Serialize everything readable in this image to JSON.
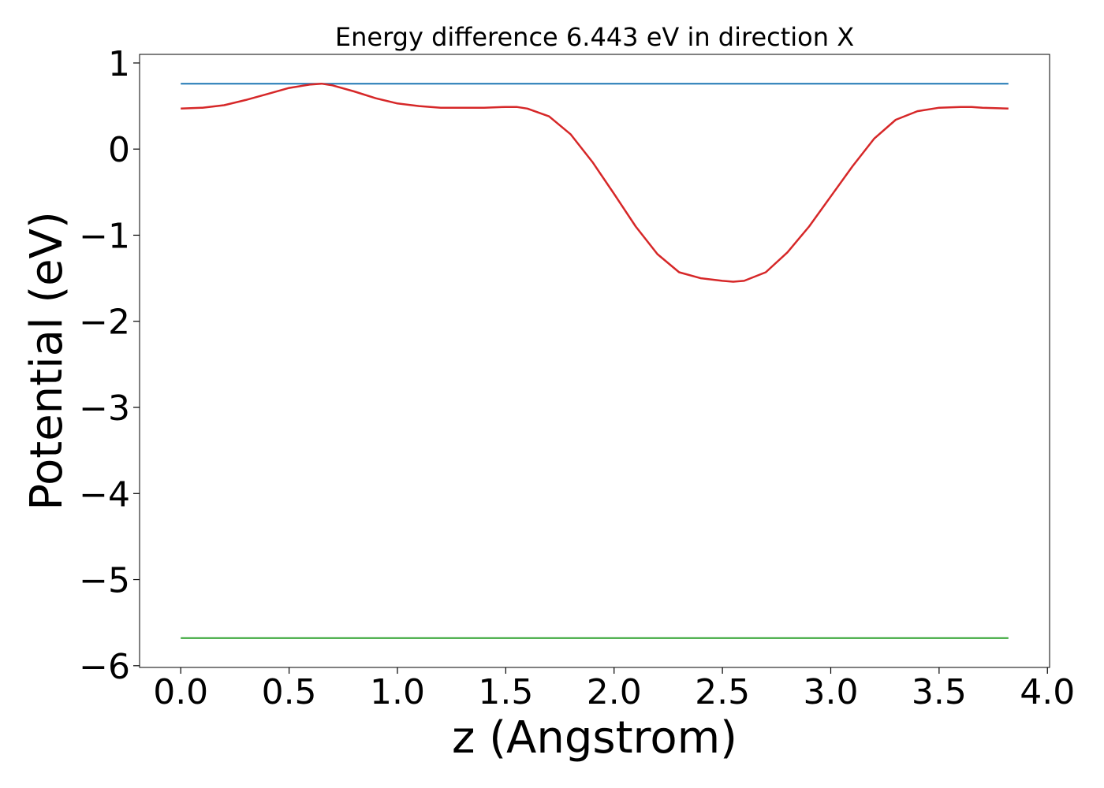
{
  "chart_data": {
    "type": "line",
    "title": "Energy difference 6.443 eV in direction X",
    "xlabel": "z (Angstrom)",
    "ylabel": "Potential (eV)",
    "xlim": [
      -0.19,
      4.01
    ],
    "ylim": [
      -6.02,
      1.1
    ],
    "xticks": [
      0.0,
      0.5,
      1.0,
      1.5,
      2.0,
      2.5,
      3.0,
      3.5,
      4.0
    ],
    "xtick_labels": [
      "0.0",
      "0.5",
      "1.0",
      "1.5",
      "2.0",
      "2.5",
      "3.0",
      "3.5",
      "4.0"
    ],
    "yticks": [
      -6,
      -5,
      -4,
      -3,
      -2,
      -1,
      0,
      1
    ],
    "ytick_labels": [
      "−6",
      "−5",
      "−4",
      "−3",
      "−2",
      "−1",
      "0",
      "1"
    ],
    "grid": false,
    "series": [
      {
        "color": "#1f77b4",
        "x": [
          0.0,
          3.82
        ],
        "y": [
          0.76,
          0.76
        ]
      },
      {
        "color": "#d62728",
        "x": [
          0.0,
          0.1,
          0.2,
          0.3,
          0.4,
          0.5,
          0.6,
          0.65,
          0.7,
          0.8,
          0.9,
          1.0,
          1.1,
          1.2,
          1.3,
          1.4,
          1.5,
          1.55,
          1.6,
          1.7,
          1.8,
          1.9,
          2.0,
          2.1,
          2.2,
          2.3,
          2.4,
          2.5,
          2.55,
          2.6,
          2.7,
          2.8,
          2.9,
          3.0,
          3.1,
          3.2,
          3.3,
          3.4,
          3.5,
          3.6,
          3.65,
          3.7,
          3.82
        ],
        "y": [
          0.47,
          0.48,
          0.51,
          0.57,
          0.64,
          0.71,
          0.75,
          0.76,
          0.74,
          0.67,
          0.59,
          0.53,
          0.5,
          0.48,
          0.48,
          0.48,
          0.49,
          0.49,
          0.47,
          0.38,
          0.17,
          -0.15,
          -0.52,
          -0.9,
          -1.22,
          -1.43,
          -1.5,
          -1.53,
          -1.54,
          -1.53,
          -1.43,
          -1.2,
          -0.9,
          -0.55,
          -0.2,
          0.12,
          0.34,
          0.44,
          0.48,
          0.49,
          0.49,
          0.48,
          0.47
        ]
      },
      {
        "color": "#2ca02c",
        "x": [
          0.0,
          3.82
        ],
        "y": [
          -5.68,
          -5.68
        ]
      }
    ]
  }
}
